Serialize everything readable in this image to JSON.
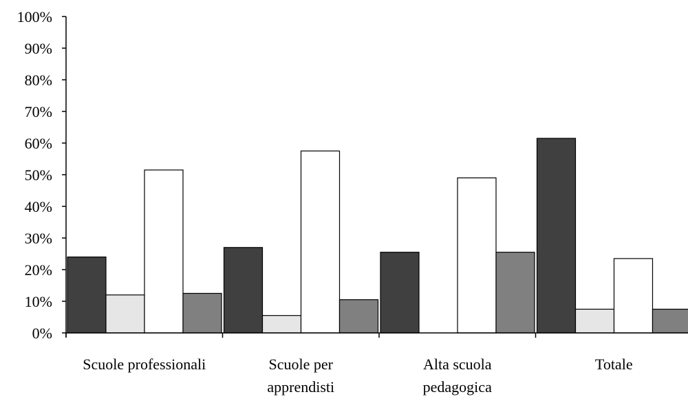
{
  "chart_data": {
    "type": "bar",
    "categories": [
      [
        "Scuole professionali"
      ],
      [
        "Scuole per",
        "apprendisti"
      ],
      [
        "Alta scuola",
        "pedagogica"
      ],
      [
        "Totale"
      ]
    ],
    "series": [
      {
        "color": "#404040",
        "values": [
          24,
          27,
          25.5,
          61.5
        ]
      },
      {
        "color": "#e6e6e6",
        "values": [
          12,
          5.5,
          0,
          7.5
        ]
      },
      {
        "color": "#ffffff",
        "values": [
          51.5,
          57.5,
          49,
          23.5
        ]
      },
      {
        "color": "#808080",
        "values": [
          12.5,
          10.5,
          25.5,
          7.5
        ]
      }
    ],
    "yticks": [
      "0%",
      "10%",
      "20%",
      "30%",
      "40%",
      "50%",
      "60%",
      "70%",
      "80%",
      "90%",
      "100%"
    ],
    "ylim": [
      0,
      100
    ],
    "grid": false,
    "legend": "none"
  }
}
